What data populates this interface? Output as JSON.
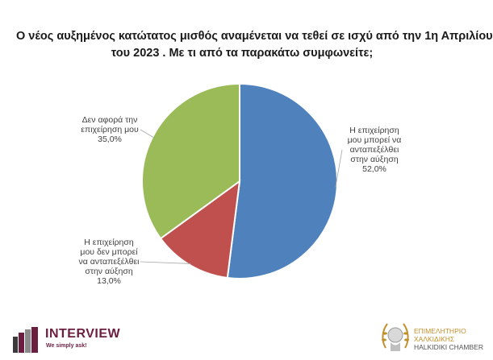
{
  "chart_data": {
    "type": "pie",
    "title_lines": [
      "Ο νέος αυξημένος κατώτατος μισθός αναμένεται να τεθεί σε ισχύ από την 1η Απριλίου",
      "του 2023 . Με τι από τα παρακάτω συμφωνείτε;"
    ],
    "slices": [
      {
        "label_lines": [
          "Η επιχείρηση",
          "μου μπορεί να",
          "ανταπεξέλθει",
          "στην αύξηση"
        ],
        "value": 52.0,
        "value_text": "52,0%",
        "color": "#4f81bd"
      },
      {
        "label_lines": [
          "Η επιχείρηση",
          "μου δεν μπορεί",
          "να ανταπεξέλθει",
          "στην αύξηση"
        ],
        "value": 13.0,
        "value_text": "13,0%",
        "color": "#c0504d"
      },
      {
        "label_lines": [
          "Δεν αφορά την",
          "επιχείρηση μου"
        ],
        "value": 35.0,
        "value_text": "35,0%",
        "color": "#9bbb59"
      }
    ],
    "start_angle": "12 o'clock",
    "direction": "clockwise",
    "legend": "none"
  },
  "logos": {
    "interview": {
      "name": "INTERVIEW",
      "tagline": "We simply ask!"
    },
    "chamber": {
      "line1": "ΕΠΙΜΕΛΗΤΗΡΙΟ",
      "line2": "ΧΑΛΚΙΔΙΚΗΣ",
      "line3": "HALKIDIKI CHAMBER"
    }
  }
}
